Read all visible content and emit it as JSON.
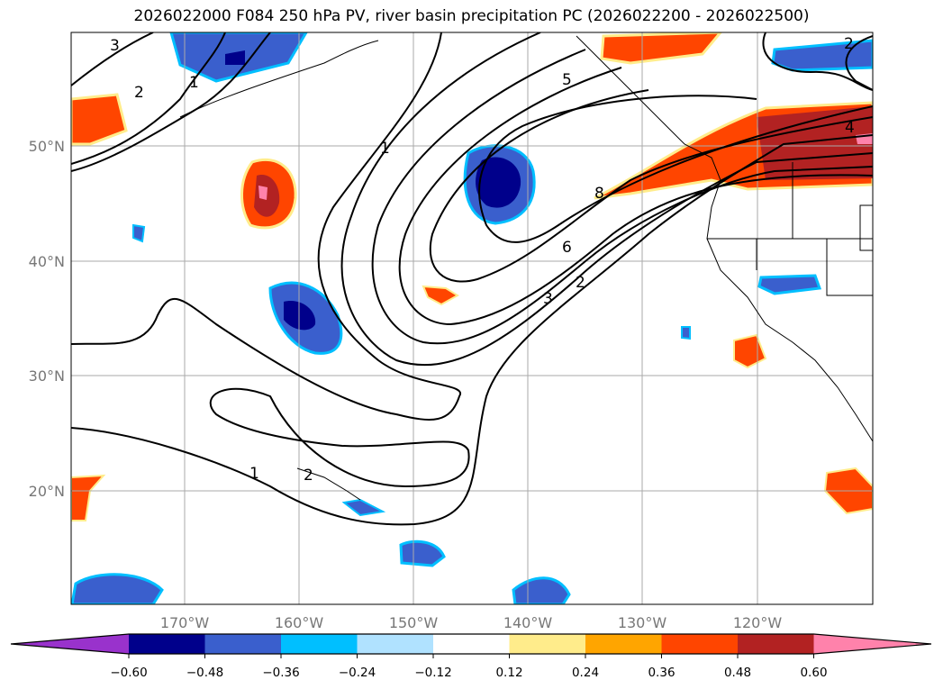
{
  "title": "2026022000 F084 250 hPa PV, river basin precipitation PC (2026022200 - 2026022500)",
  "map": {
    "lon_labels": [
      "170°W",
      "160°W",
      "150°W",
      "140°W",
      "130°W",
      "120°W"
    ],
    "lat_labels": [
      "50°N",
      "40°N",
      "30°N",
      "20°N"
    ],
    "contour_labels": [
      "1",
      "5",
      "6",
      "3",
      "2",
      "4",
      "8",
      "1",
      "2",
      "2",
      "3",
      "1",
      "2"
    ],
    "field": "250 hPa PV",
    "shading": "river basin precipitation PC"
  },
  "colorbar": {
    "ticks": [
      "−0.60",
      "−0.48",
      "−0.36",
      "−0.24",
      "−0.12",
      "0.12",
      "0.24",
      "0.36",
      "0.48",
      "0.60"
    ],
    "colors": [
      "#9932CC",
      "#00008B",
      "#3A5FCD",
      "#00BFFF",
      "#B0E2FF",
      "#FFFFFF",
      "#FFEC8B",
      "#FFA500",
      "#FF4500",
      "#B22222",
      "#FF82AB"
    ]
  }
}
